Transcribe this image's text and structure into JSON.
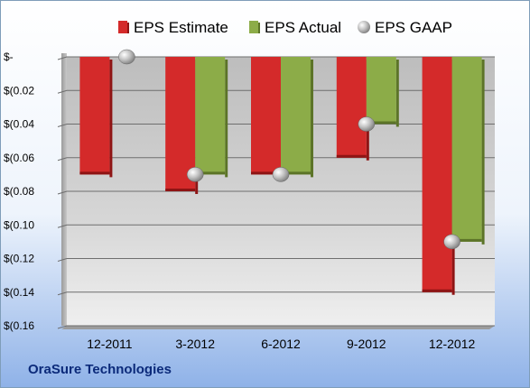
{
  "chart_data": {
    "type": "bar",
    "categories": [
      "12-2011",
      "3-2012",
      "6-2012",
      "9-2012",
      "12-2012"
    ],
    "series": [
      {
        "name": "EPS Estimate",
        "kind": "bar",
        "color": "#d42a2a",
        "values": [
          -0.07,
          -0.08,
          -0.07,
          -0.06,
          -0.14
        ]
      },
      {
        "name": "EPS Actual",
        "kind": "bar",
        "color": "#8cac48",
        "values": [
          null,
          -0.07,
          -0.07,
          -0.04,
          -0.11
        ]
      },
      {
        "name": "EPS GAAP",
        "kind": "marker",
        "color": "#b8b8b8",
        "values": [
          0,
          -0.07,
          -0.07,
          -0.04,
          -0.11
        ]
      }
    ],
    "ylim": [
      -0.16,
      0
    ],
    "yticks": [
      0,
      -0.02,
      -0.04,
      -0.06,
      -0.08,
      -0.1,
      -0.12,
      -0.14,
      -0.16
    ],
    "ytick_labels": [
      "$-",
      "$(0.02",
      "$(0.04",
      "$(0.06",
      "$(0.08",
      "$(0.10",
      "$(0.12",
      "$(0.14",
      "$(0.16"
    ],
    "grid": true,
    "legend_position": "top"
  },
  "footer": {
    "company": "OraSure Technologies"
  }
}
